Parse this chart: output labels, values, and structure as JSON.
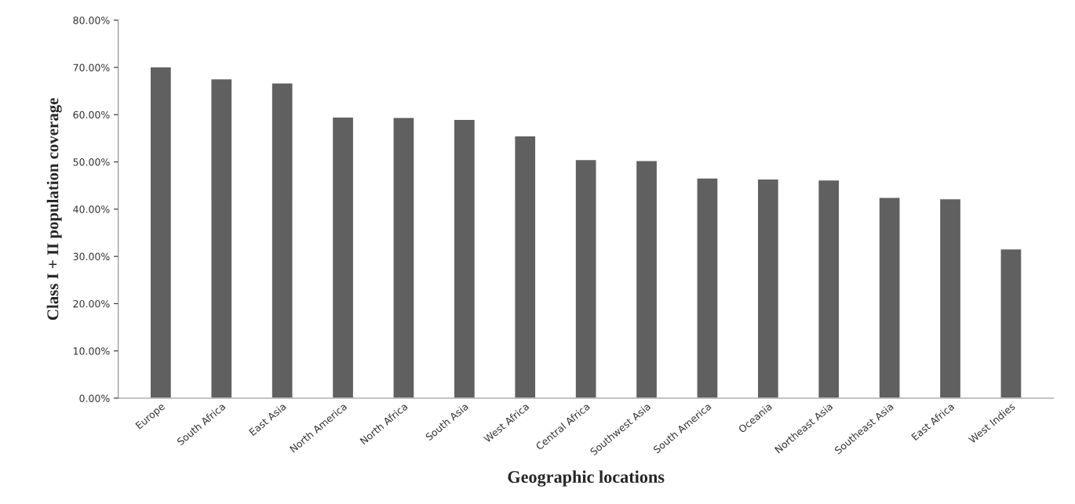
{
  "chart_data": {
    "type": "bar",
    "xlabel": "Geographic locations",
    "ylabel": "Class I + II population coverage",
    "categories": [
      "Europe",
      "South Africa",
      "East Asia",
      "North America",
      "North Africa",
      "South Asia",
      "West Africa",
      "Central Africa",
      "Southwest Asia",
      "South America",
      "Oceania",
      "Northeast Asia",
      "Southeast Asia",
      "East Africa",
      "West Indies"
    ],
    "values": [
      70.1,
      67.6,
      66.7,
      59.5,
      59.4,
      59.0,
      55.5,
      50.5,
      50.3,
      46.6,
      46.4,
      46.2,
      42.5,
      42.2,
      31.6
    ],
    "color": "#606060",
    "ylim": [
      0,
      80
    ],
    "yticks": [
      {
        "value": 0,
        "label": "0.00%"
      },
      {
        "value": 10,
        "label": "10.00%"
      },
      {
        "value": 20,
        "label": "20.00%"
      },
      {
        "value": 30,
        "label": "30.00%"
      },
      {
        "value": 40,
        "label": "40.00%"
      },
      {
        "value": 50,
        "label": "50.00%"
      },
      {
        "value": 60,
        "label": "60.00%"
      },
      {
        "value": 70,
        "label": "70.00%"
      },
      {
        "value": 80,
        "label": "80.00%"
      }
    ],
    "grid": false
  }
}
